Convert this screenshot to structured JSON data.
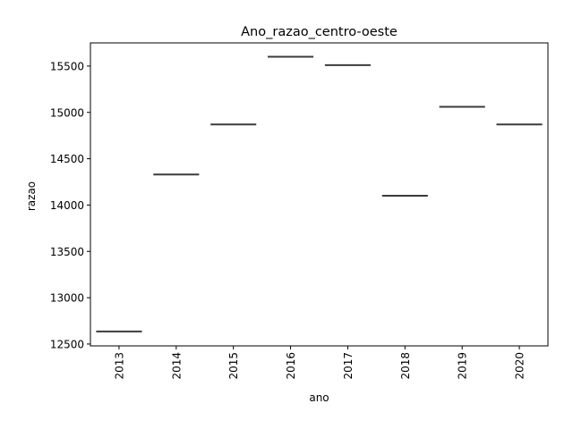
{
  "chart_data": {
    "type": "box",
    "title": "Ano_razao_centro-oeste",
    "xlabel": "ano",
    "ylabel": "razao",
    "categories": [
      "2013",
      "2014",
      "2015",
      "2016",
      "2017",
      "2018",
      "2019",
      "2020"
    ],
    "values": [
      12635,
      14330,
      14870,
      15600,
      15510,
      14100,
      15060,
      14870
    ],
    "ylim": [
      12480,
      15750
    ],
    "yticks": [
      12500,
      13000,
      13500,
      14000,
      14500,
      15000,
      15500
    ],
    "ytick_labels": [
      "12500",
      "13000",
      "13500",
      "14000",
      "14500",
      "15000",
      "15500"
    ],
    "line_color": "#3b3b3b",
    "grid": false,
    "legend": "none"
  }
}
